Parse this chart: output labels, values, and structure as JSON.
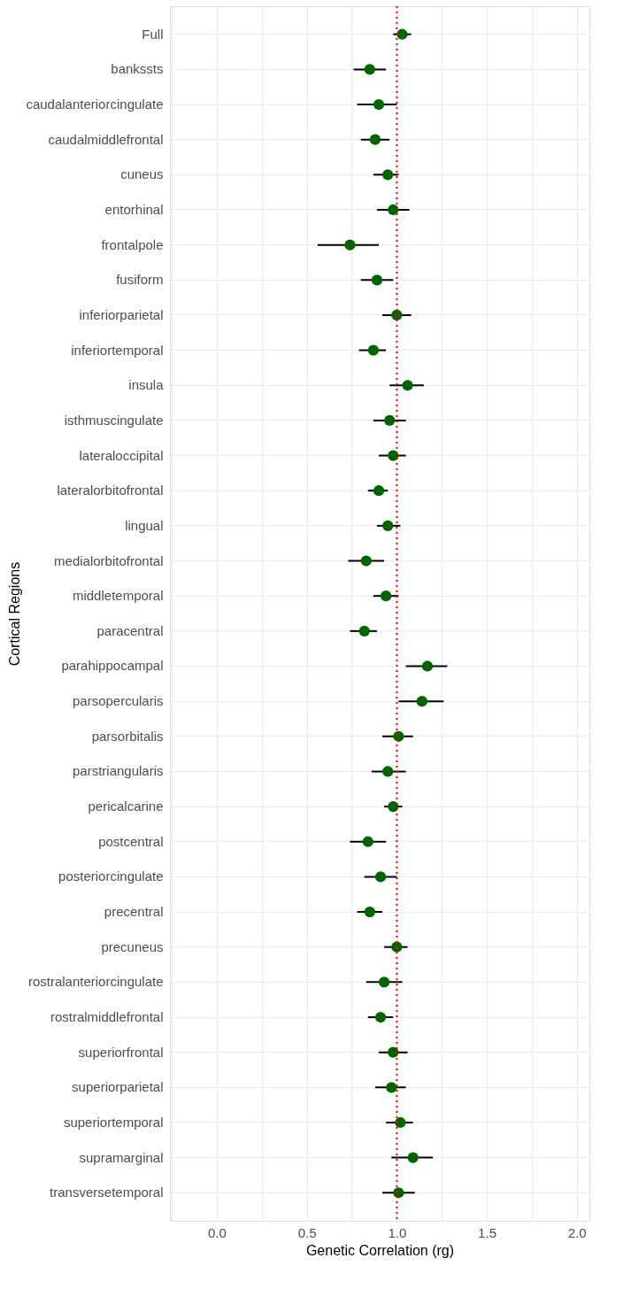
{
  "chart_data": {
    "type": "scatter",
    "orientation": "horizontal",
    "xlabel": "Genetic Correlation (rg)",
    "ylabel": "Cortical Regions",
    "categories": [
      "Full",
      "bankssts",
      "caudalanteriorcingulate",
      "caudalmiddlefrontal",
      "cuneus",
      "entorhinal",
      "frontalpole",
      "fusiform",
      "inferiorparietal",
      "inferiortemporal",
      "insula",
      "isthmuscingulate",
      "lateraloccipital",
      "lateralorbitofrontal",
      "lingual",
      "medialorbitofrontal",
      "middletemporal",
      "paracentral",
      "parahippocampal",
      "parsopercularis",
      "parsorbitalis",
      "parstriangularis",
      "pericalcarine",
      "postcentral",
      "posteriorcingulate",
      "precentral",
      "precuneus",
      "rostralanteriorcingulate",
      "rostralmiddlefrontal",
      "superiorfrontal",
      "superiorparietal",
      "superiortemporal",
      "supramarginal",
      "transversetemporal"
    ],
    "series": [
      {
        "color": "#006400",
        "values": [
          1.03,
          0.85,
          0.9,
          0.88,
          0.95,
          0.98,
          0.74,
          0.89,
          1.0,
          0.87,
          1.06,
          0.96,
          0.98,
          0.9,
          0.95,
          0.83,
          0.94,
          0.82,
          1.17,
          1.14,
          1.01,
          0.95,
          0.98,
          0.84,
          0.91,
          0.85,
          1.0,
          0.93,
          0.91,
          0.98,
          0.97,
          1.02,
          1.09,
          1.01
        ],
        "errors": [
          [
            0.98,
            1.08
          ],
          [
            0.76,
            0.94
          ],
          [
            0.78,
            1.0
          ],
          [
            0.8,
            0.96
          ],
          [
            0.87,
            1.01
          ],
          [
            0.89,
            1.07
          ],
          [
            0.56,
            0.9
          ],
          [
            0.8,
            0.98
          ],
          [
            0.92,
            1.08
          ],
          [
            0.79,
            0.94
          ],
          [
            0.96,
            1.15
          ],
          [
            0.87,
            1.05
          ],
          [
            0.9,
            1.05
          ],
          [
            0.84,
            0.95
          ],
          [
            0.89,
            1.02
          ],
          [
            0.73,
            0.93
          ],
          [
            0.87,
            1.01
          ],
          [
            0.74,
            0.89
          ],
          [
            1.05,
            1.28
          ],
          [
            1.01,
            1.26
          ],
          [
            0.92,
            1.09
          ],
          [
            0.86,
            1.05
          ],
          [
            0.93,
            1.03
          ],
          [
            0.74,
            0.94
          ],
          [
            0.82,
            1.0
          ],
          [
            0.78,
            0.92
          ],
          [
            0.93,
            1.06
          ],
          [
            0.83,
            1.03
          ],
          [
            0.84,
            0.98
          ],
          [
            0.9,
            1.06
          ],
          [
            0.88,
            1.05
          ],
          [
            0.94,
            1.09
          ],
          [
            0.97,
            1.2
          ],
          [
            0.92,
            1.1
          ]
        ]
      }
    ],
    "xlim": [
      -0.26,
      2.07
    ],
    "xticks": [
      {
        "value": -0.25,
        "label": null
      },
      {
        "value": 0,
        "label": "0.0"
      },
      {
        "value": 0.25,
        "label": null
      },
      {
        "value": 0.5,
        "label": "0.5"
      },
      {
        "value": 0.75,
        "label": null
      },
      {
        "value": 1,
        "label": "1.0"
      },
      {
        "value": 1.25,
        "label": null
      },
      {
        "value": 1.5,
        "label": "1.5"
      },
      {
        "value": 1.75,
        "label": null
      },
      {
        "value": 2,
        "label": "2.0"
      }
    ],
    "grid": true,
    "marker": "circle",
    "ref_lines": [
      {
        "axis": "x",
        "value": 1,
        "color": "#ff0000",
        "line_style": "dotted"
      }
    ]
  }
}
